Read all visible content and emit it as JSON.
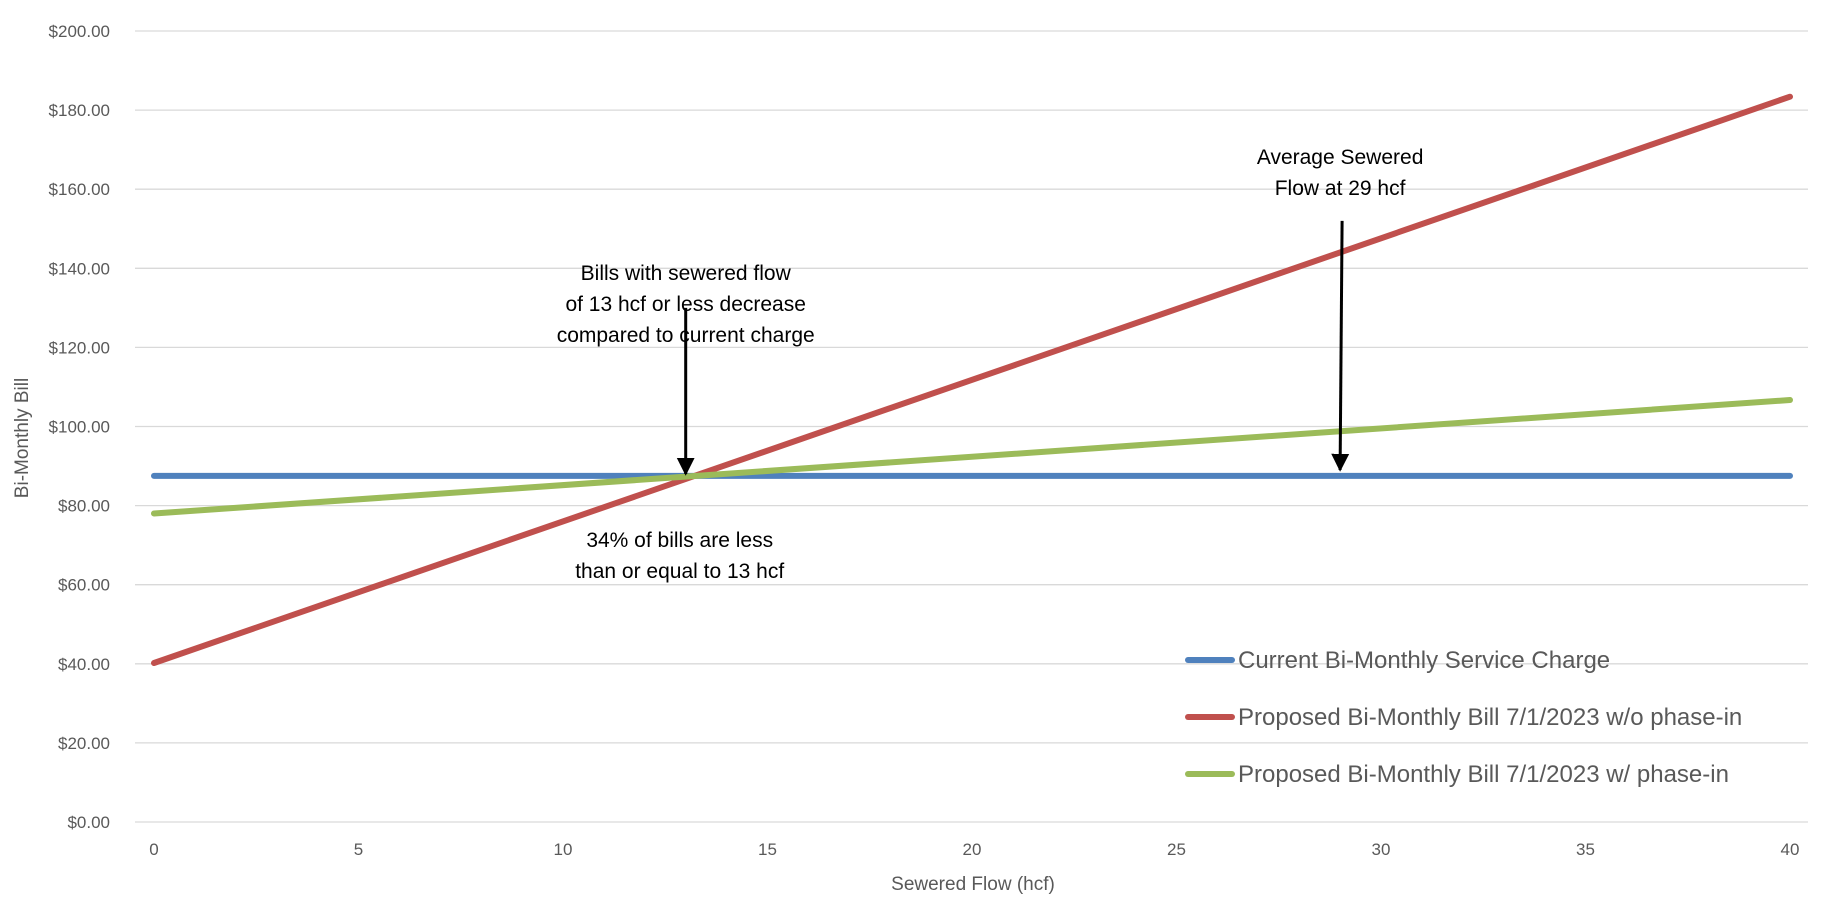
{
  "chart_data": {
    "type": "line",
    "xlabel": "Sewered Flow (hcf)",
    "ylabel": "Bi-Monthly Bill",
    "xlim": [
      0,
      40
    ],
    "ylim": [
      0,
      200
    ],
    "x_ticks": [
      "0",
      "5",
      "10",
      "15",
      "20",
      "25",
      "30",
      "35",
      "40"
    ],
    "y_ticks": [
      "$0.00",
      "$20.00",
      "$40.00",
      "$60.00",
      "$80.00",
      "$100.00",
      "$120.00",
      "$140.00",
      "$160.00",
      "$180.00",
      "$200.00"
    ],
    "grid": true,
    "legend_position": "bottom-right",
    "series": [
      {
        "name": "Current Bi-Monthly Service Charge",
        "color": "#4f81bd",
        "x": [
          0,
          40
        ],
        "values": [
          87.5,
          87.5
        ]
      },
      {
        "name": "Proposed Bi-Monthly Bill 7/1/2023 w/o phase-in",
        "color": "#c0504d",
        "x": [
          0,
          40
        ],
        "values": [
          40.2,
          183.4
        ]
      },
      {
        "name": "Proposed Bi-Monthly Bill 7/1/2023 w/ phase-in",
        "color": "#9bbb59",
        "x": [
          0,
          40
        ],
        "values": [
          78.0,
          106.7
        ]
      }
    ],
    "annotations": [
      {
        "lines": [
          "Bills with sewered flow",
          "of 13 hcf or less decrease",
          "compared to current charge"
        ],
        "x": 13,
        "arrow_from": 130,
        "arrow_to": 88
      },
      {
        "lines": [
          "34% of bills are less",
          "than or equal to 13 hcf"
        ],
        "x": 13,
        "label_top": 72
      },
      {
        "lines": [
          "Average Sewered",
          "Flow at 29 hcf"
        ],
        "x": 29,
        "arrow_from": 152,
        "arrow_to": 89
      }
    ]
  }
}
